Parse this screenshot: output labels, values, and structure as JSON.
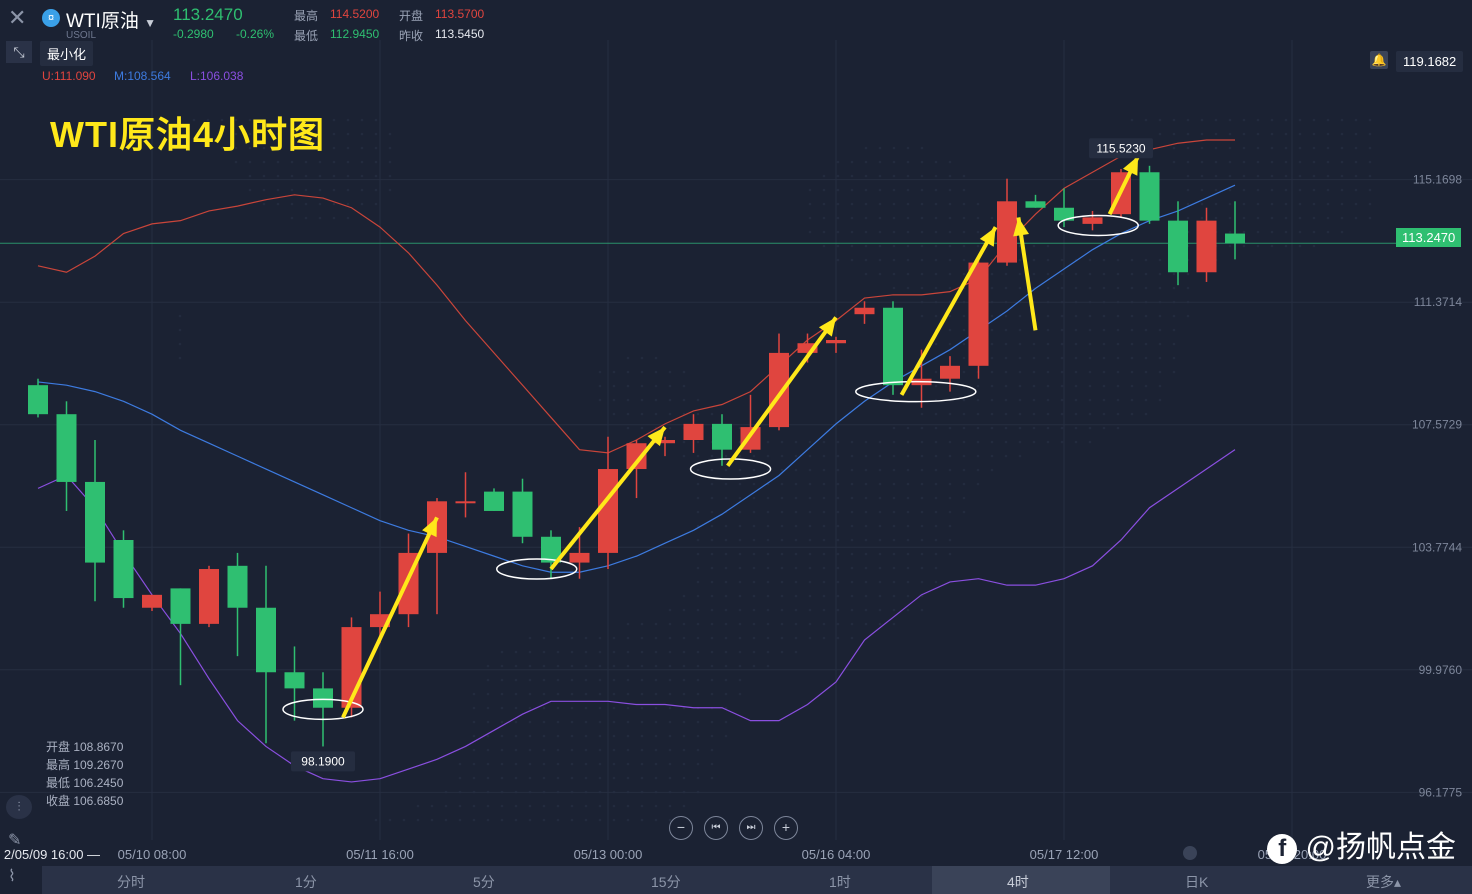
{
  "header": {
    "instrument": "WTI原油",
    "symbol": "USOIL",
    "last_price": "113.2470",
    "change": "-0.2980",
    "change_pct": "-0.26%",
    "high_label": "最高",
    "high_value": "114.5200",
    "open_label": "开盘",
    "open_value": "113.5700",
    "low_label": "最低",
    "low_value": "112.9450",
    "prev_close_label": "昨收",
    "prev_close_value": "113.5450"
  },
  "toolbar": {
    "minimize_tooltip": "最小化"
  },
  "bollinger": {
    "upper": "U:111.090",
    "middle": "M:108.564",
    "lower": "L:106.038"
  },
  "annotation_title": "WTI原油4小时图",
  "ohlc_panel": {
    "open": "开盘 108.8670",
    "high": "最高 109.2670",
    "low": "最低 106.2450",
    "close": "收盘 106.6850"
  },
  "current_price_tag": "113.2470",
  "top_price_tag": "119.1682",
  "periods": [
    "分时",
    "1分",
    "5分",
    "15分",
    "1时",
    "4时",
    "日K",
    "更多"
  ],
  "active_period": "4时",
  "watermark": "@扬帆点金",
  "colors": {
    "up": "#e0453f",
    "down": "#2fbf71",
    "upper_band": "#c9453a",
    "middle_band": "#3d7be0",
    "lower_band": "#8a4fe0",
    "arrow": "#ffe81a"
  },
  "chart_data": {
    "type": "candlestick",
    "title": "WTI原油4小时图",
    "x_tick_labels": [
      "2/05/09 16:00",
      "05/10 08:00",
      "05/11 16:00",
      "05/13 00:00",
      "05/16 04:00",
      "05/17 12:00",
      "05/18 20:00"
    ],
    "y_tick_labels": [
      "115.1698",
      "111.3714",
      "107.5729",
      "103.7744",
      "99.9760",
      "96.1775"
    ],
    "ylim": [
      94.7,
      119.5
    ],
    "candles": [
      {
        "o": 108.8,
        "h": 109.0,
        "l": 107.8,
        "c": 107.9
      },
      {
        "o": 107.9,
        "h": 108.3,
        "l": 104.9,
        "c": 105.8
      },
      {
        "o": 105.8,
        "h": 107.1,
        "l": 102.1,
        "c": 103.3
      },
      {
        "o": 104.0,
        "h": 104.3,
        "l": 101.9,
        "c": 102.2
      },
      {
        "o": 101.9,
        "h": 102.3,
        "l": 101.8,
        "c": 102.3
      },
      {
        "o": 102.5,
        "h": 102.5,
        "l": 99.5,
        "c": 101.4
      },
      {
        "o": 101.4,
        "h": 103.2,
        "l": 101.3,
        "c": 103.1
      },
      {
        "o": 103.2,
        "h": 103.6,
        "l": 100.4,
        "c": 101.9
      },
      {
        "o": 101.9,
        "h": 103.2,
        "l": 97.7,
        "c": 99.9
      },
      {
        "o": 99.9,
        "h": 100.7,
        "l": 98.4,
        "c": 99.4
      },
      {
        "o": 99.4,
        "h": 99.9,
        "l": 97.6,
        "c": 98.8
      },
      {
        "o": 98.8,
        "h": 101.6,
        "l": 98.5,
        "c": 101.3
      },
      {
        "o": 101.3,
        "h": 102.4,
        "l": 100.8,
        "c": 101.7
      },
      {
        "o": 101.7,
        "h": 104.2,
        "l": 101.3,
        "c": 103.6
      },
      {
        "o": 103.6,
        "h": 105.3,
        "l": 101.7,
        "c": 105.2
      },
      {
        "o": 105.2,
        "h": 106.1,
        "l": 104.7,
        "c": 105.2
      },
      {
        "o": 105.5,
        "h": 105.6,
        "l": 104.9,
        "c": 104.9
      },
      {
        "o": 105.5,
        "h": 105.9,
        "l": 103.9,
        "c": 104.1
      },
      {
        "o": 104.1,
        "h": 104.3,
        "l": 102.8,
        "c": 103.3
      },
      {
        "o": 103.3,
        "h": 104.4,
        "l": 102.8,
        "c": 103.6
      },
      {
        "o": 103.6,
        "h": 107.2,
        "l": 103.1,
        "c": 106.2
      },
      {
        "o": 106.2,
        "h": 107.1,
        "l": 105.3,
        "c": 107.0
      },
      {
        "o": 107.0,
        "h": 107.2,
        "l": 106.6,
        "c": 107.1
      },
      {
        "o": 107.1,
        "h": 107.9,
        "l": 106.7,
        "c": 107.6
      },
      {
        "o": 107.6,
        "h": 107.9,
        "l": 106.3,
        "c": 106.8
      },
      {
        "o": 106.8,
        "h": 108.5,
        "l": 106.7,
        "c": 107.5
      },
      {
        "o": 107.5,
        "h": 110.4,
        "l": 107.4,
        "c": 109.8
      },
      {
        "o": 109.8,
        "h": 110.4,
        "l": 109.5,
        "c": 110.1
      },
      {
        "o": 110.1,
        "h": 110.3,
        "l": 109.8,
        "c": 110.2
      },
      {
        "o": 111.0,
        "h": 111.4,
        "l": 110.7,
        "c": 111.2
      },
      {
        "o": 111.2,
        "h": 111.4,
        "l": 108.5,
        "c": 108.8
      },
      {
        "o": 108.8,
        "h": 109.9,
        "l": 108.1,
        "c": 109.0
      },
      {
        "o": 109.0,
        "h": 109.7,
        "l": 108.6,
        "c": 109.4
      },
      {
        "o": 109.4,
        "h": 112.7,
        "l": 109.0,
        "c": 112.6
      },
      {
        "o": 112.6,
        "h": 115.2,
        "l": 112.5,
        "c": 114.5
      },
      {
        "o": 114.5,
        "h": 114.7,
        "l": 114.3,
        "c": 114.3
      },
      {
        "o": 114.3,
        "h": 114.9,
        "l": 113.7,
        "c": 113.9
      },
      {
        "o": 113.8,
        "h": 114.2,
        "l": 113.6,
        "c": 114.0
      },
      {
        "o": 114.1,
        "h": 115.5,
        "l": 114.0,
        "c": 115.4
      },
      {
        "o": 115.4,
        "h": 115.6,
        "l": 113.8,
        "c": 113.9
      },
      {
        "o": 113.9,
        "h": 114.5,
        "l": 111.9,
        "c": 112.3
      },
      {
        "o": 112.3,
        "h": 114.3,
        "l": 112.0,
        "c": 113.9
      },
      {
        "o": 113.5,
        "h": 114.5,
        "l": 112.7,
        "c": 113.2
      }
    ],
    "upper_band": [
      112.5,
      112.3,
      112.8,
      113.5,
      113.8,
      113.9,
      114.2,
      114.35,
      114.55,
      114.7,
      114.6,
      114.3,
      113.7,
      112.9,
      111.9,
      110.8,
      109.8,
      108.8,
      107.8,
      106.8,
      106.7,
      107.1,
      107.6,
      108.0,
      108.2,
      108.6,
      109.4,
      110.2,
      110.8,
      111.5,
      111.6,
      111.6,
      111.7,
      112.1,
      113.2,
      114.1,
      114.9,
      115.4,
      115.9,
      116.1,
      116.3,
      116.4,
      116.4
    ],
    "middle_band": [
      108.9,
      108.8,
      108.6,
      108.3,
      107.9,
      107.4,
      107.0,
      106.6,
      106.2,
      105.8,
      105.4,
      105.0,
      104.6,
      104.3,
      104.1,
      103.8,
      103.5,
      103.2,
      103.0,
      103.0,
      103.2,
      103.5,
      103.9,
      104.3,
      104.8,
      105.4,
      106.0,
      106.8,
      107.6,
      108.3,
      108.9,
      109.4,
      109.9,
      110.5,
      111.1,
      111.8,
      112.4,
      113.0,
      113.5,
      113.9,
      114.2,
      114.6,
      115.0
    ],
    "lower_band": [
      105.6,
      106.0,
      105.0,
      103.6,
      102.3,
      101.1,
      99.7,
      98.4,
      97.6,
      97.0,
      96.6,
      96.5,
      96.6,
      96.9,
      97.2,
      97.6,
      98.1,
      98.6,
      99.0,
      99.0,
      99.0,
      98.9,
      98.9,
      98.8,
      98.8,
      98.4,
      98.4,
      98.9,
      99.6,
      100.9,
      101.6,
      102.3,
      102.7,
      102.8,
      102.6,
      102.6,
      102.8,
      103.2,
      104.0,
      105.0,
      105.6,
      106.2,
      106.8
    ],
    "annotations": [
      {
        "label": "98.1900",
        "candle": 10,
        "value": 98.19
      },
      {
        "label": "115.5230",
        "candle": 38,
        "value": 115.523
      }
    ],
    "arrows": [
      {
        "from": [
          10.7,
          98.5
        ],
        "to": [
          14,
          104.7
        ]
      },
      {
        "from": [
          18,
          103.1
        ],
        "to": [
          22,
          107.5
        ]
      },
      {
        "from": [
          24.2,
          106.3
        ],
        "to": [
          28,
          110.9
        ]
      },
      {
        "from": [
          30.3,
          108.5
        ],
        "to": [
          33.6,
          113.7
        ]
      },
      {
        "from": [
          35.0,
          110.5
        ],
        "to": [
          34.4,
          114.0
        ]
      },
      {
        "from": [
          37.6,
          114.1
        ],
        "to": [
          38.6,
          115.9
        ]
      }
    ],
    "ellipses": [
      {
        "candle": 10,
        "value": 98.75
      },
      {
        "candle": 17.5,
        "value": 103.1
      },
      {
        "candle": 24.3,
        "value": 106.2
      },
      {
        "candle": 30.8,
        "value": 108.6
      },
      {
        "candle": 37.2,
        "value": 113.75
      }
    ]
  }
}
